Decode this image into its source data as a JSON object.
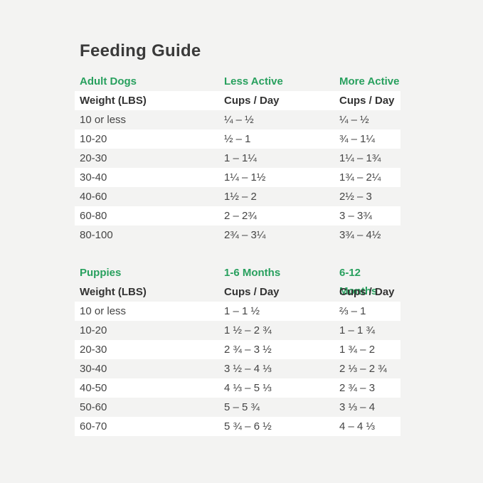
{
  "page": {
    "title": "Feeding Guide"
  },
  "colors": {
    "accent_green": "#28a05e",
    "background": "#f3f3f2",
    "row_stripe": "#ffffff",
    "text_dark": "#3a3a3a",
    "text_body": "#454545"
  },
  "adult": {
    "section": "Adult Dogs",
    "col2_label": "Less Active",
    "col3_label": "More Active",
    "header": {
      "c1": "Weight (LBS)",
      "c2": "Cups / Day",
      "c3": "Cups / Day"
    },
    "rows": [
      {
        "c1": "10 or less",
        "c2": "¼ – ½",
        "c3": "¼ – ½"
      },
      {
        "c1": "10-20",
        "c2": "½ – 1",
        "c3": "¾ – 1¼"
      },
      {
        "c1": "20-30",
        "c2": "1 – 1¼",
        "c3": "1¼ – 1¾"
      },
      {
        "c1": "30-40",
        "c2": "1¼ – 1½",
        "c3": "1¾ – 2¼"
      },
      {
        "c1": "40-60",
        "c2": "1½ – 2",
        "c3": "2½ – 3"
      },
      {
        "c1": "60-80",
        "c2": "2 – 2¾",
        "c3": "3 – 3¾"
      },
      {
        "c1": "80-100",
        "c2": "2¾ – 3¼",
        "c3": "3¾ – 4½"
      }
    ]
  },
  "puppies": {
    "section": "Puppies",
    "col2_label": "1-6 Months",
    "col3_label": "6-12 Months",
    "header": {
      "c1": "Weight (LBS)",
      "c2": "Cups / Day",
      "c3": "Cups / Day"
    },
    "rows": [
      {
        "c1": "10 or less",
        "c2": "1 – 1 ½",
        "c3": "⅔ – 1"
      },
      {
        "c1": "10-20",
        "c2": "1 ½ – 2 ¾",
        "c3": "1 – 1 ¾"
      },
      {
        "c1": "20-30",
        "c2": "2 ¾ – 3 ½",
        "c3": "1 ¾ – 2"
      },
      {
        "c1": "30-40",
        "c2": "3 ½ – 4 ⅓",
        "c3": "2 ⅓ – 2 ¾"
      },
      {
        "c1": "40-50",
        "c2": "4 ⅓ – 5 ⅓",
        "c3": "2 ¾ – 3"
      },
      {
        "c1": "50-60",
        "c2": "5 – 5 ¾",
        "c3": "3 ⅓ – 4"
      },
      {
        "c1": "60-70",
        "c2": "5 ¾ – 6 ½",
        "c3": "4 – 4 ⅓"
      }
    ]
  },
  "chart_data": [
    {
      "type": "table",
      "title": "Feeding Guide — Adult Dogs",
      "columns": [
        "Weight (LBS)",
        "Less Active Cups / Day",
        "More Active Cups / Day"
      ],
      "rows": [
        [
          "10 or less",
          "¼ – ½",
          "¼ – ½"
        ],
        [
          "10-20",
          "½ – 1",
          "¾ – 1¼"
        ],
        [
          "20-30",
          "1 – 1¼",
          "1¼ – 1¾"
        ],
        [
          "30-40",
          "1¼ – 1½",
          "1¾ – 2¼"
        ],
        [
          "40-60",
          "1½ – 2",
          "2½ – 3"
        ],
        [
          "60-80",
          "2 – 2¾",
          "3 – 3¾"
        ],
        [
          "80-100",
          "2¾ – 3¼",
          "3¾ – 4½"
        ]
      ]
    },
    {
      "type": "table",
      "title": "Feeding Guide — Puppies",
      "columns": [
        "Weight (LBS)",
        "1-6 Months Cups / Day",
        "6-12 Months Cups / Day"
      ],
      "rows": [
        [
          "10 or less",
          "1 – 1 ½",
          "⅔ – 1"
        ],
        [
          "10-20",
          "1 ½ – 2 ¾",
          "1 – 1 ¾"
        ],
        [
          "20-30",
          "2 ¾ – 3 ½",
          "1 ¾ – 2"
        ],
        [
          "30-40",
          "3 ½ – 4 ⅓",
          "2 ⅓ – 2 ¾"
        ],
        [
          "40-50",
          "4 ⅓ – 5 ⅓",
          "2 ¾ – 3"
        ],
        [
          "50-60",
          "5 – 5 ¾",
          "3 ⅓ – 4"
        ],
        [
          "60-70",
          "5 ¾ – 6 ½",
          "4 – 4 ⅓"
        ]
      ]
    }
  ]
}
